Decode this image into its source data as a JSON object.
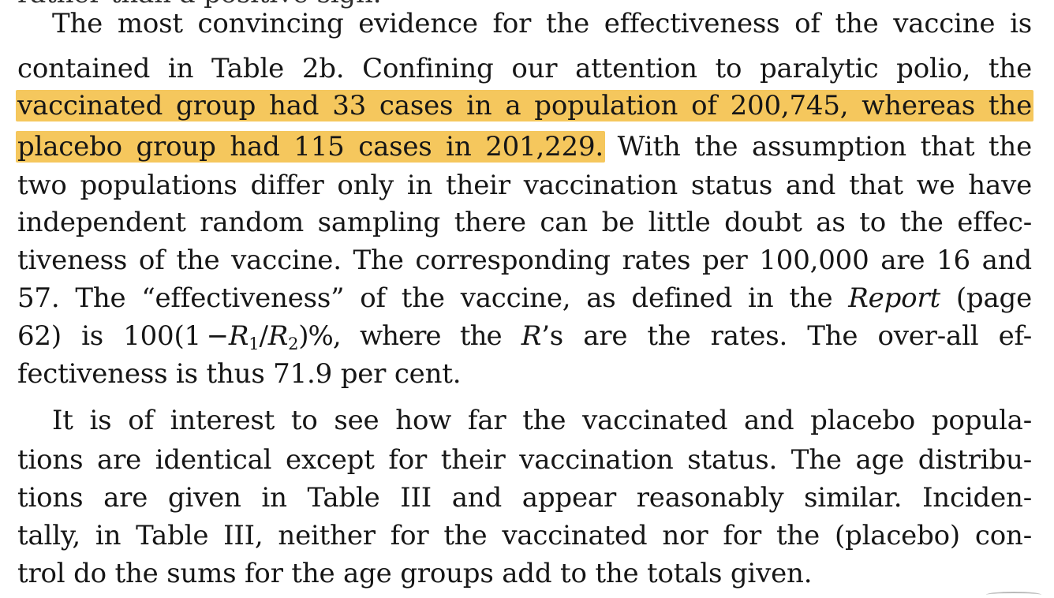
{
  "paragraph_0_fragment": "rather than a positive sign.",
  "paragraph_1": {
    "line_1": "The most convincing evidence for the effectiveness of the vaccine is",
    "line_2": "contained in Table 2b. Confining our attention to paralytic polio, the",
    "line_3_highlight": "vaccinated group had 33 cases in a population of 200,745, whereas the",
    "line_4_highlight": "placebo group had 115 cases in 201,229.",
    "line_4_rest": "With the assumption that the",
    "line_5": "two populations differ only in their vaccination status and that we have",
    "line_6": "independent random sampling there can be little doubt as to the effec-",
    "line_7": "tiveness of the vaccine. The corresponding rates per 100,000 are 16 and",
    "line_8_start": "57. The “effectiveness” of the vaccine, as defined in the",
    "line_8_italic": "Report",
    "line_8_end": "(page",
    "line_9_start": "62) is 100(1 −",
    "line_9_R1": "R",
    "line_9_sub1": "1",
    "line_9_slash": "/",
    "line_9_R2": "R",
    "line_9_sub2": "2",
    "line_9_mid": ")%, where the",
    "line_9_R": "R",
    "line_9_end": "’s are the rates. The over-all ef-",
    "line_10": "fectiveness is thus 71.9 per cent."
  },
  "paragraph_2": {
    "line_1": "It is of interest to see how far the vaccinated and placebo popula-",
    "line_2": "tions are identical except for their vaccination status. The age distribu-",
    "line_3": "tions are given in Table III and appear reasonably similar. Inciden-",
    "line_4": "tally, in Table III, neither for the vaccinated nor for the (placebo) con-",
    "line_5": "trol do the sums for the age groups add to the totals given."
  },
  "highlight_color": "#f5c75d"
}
